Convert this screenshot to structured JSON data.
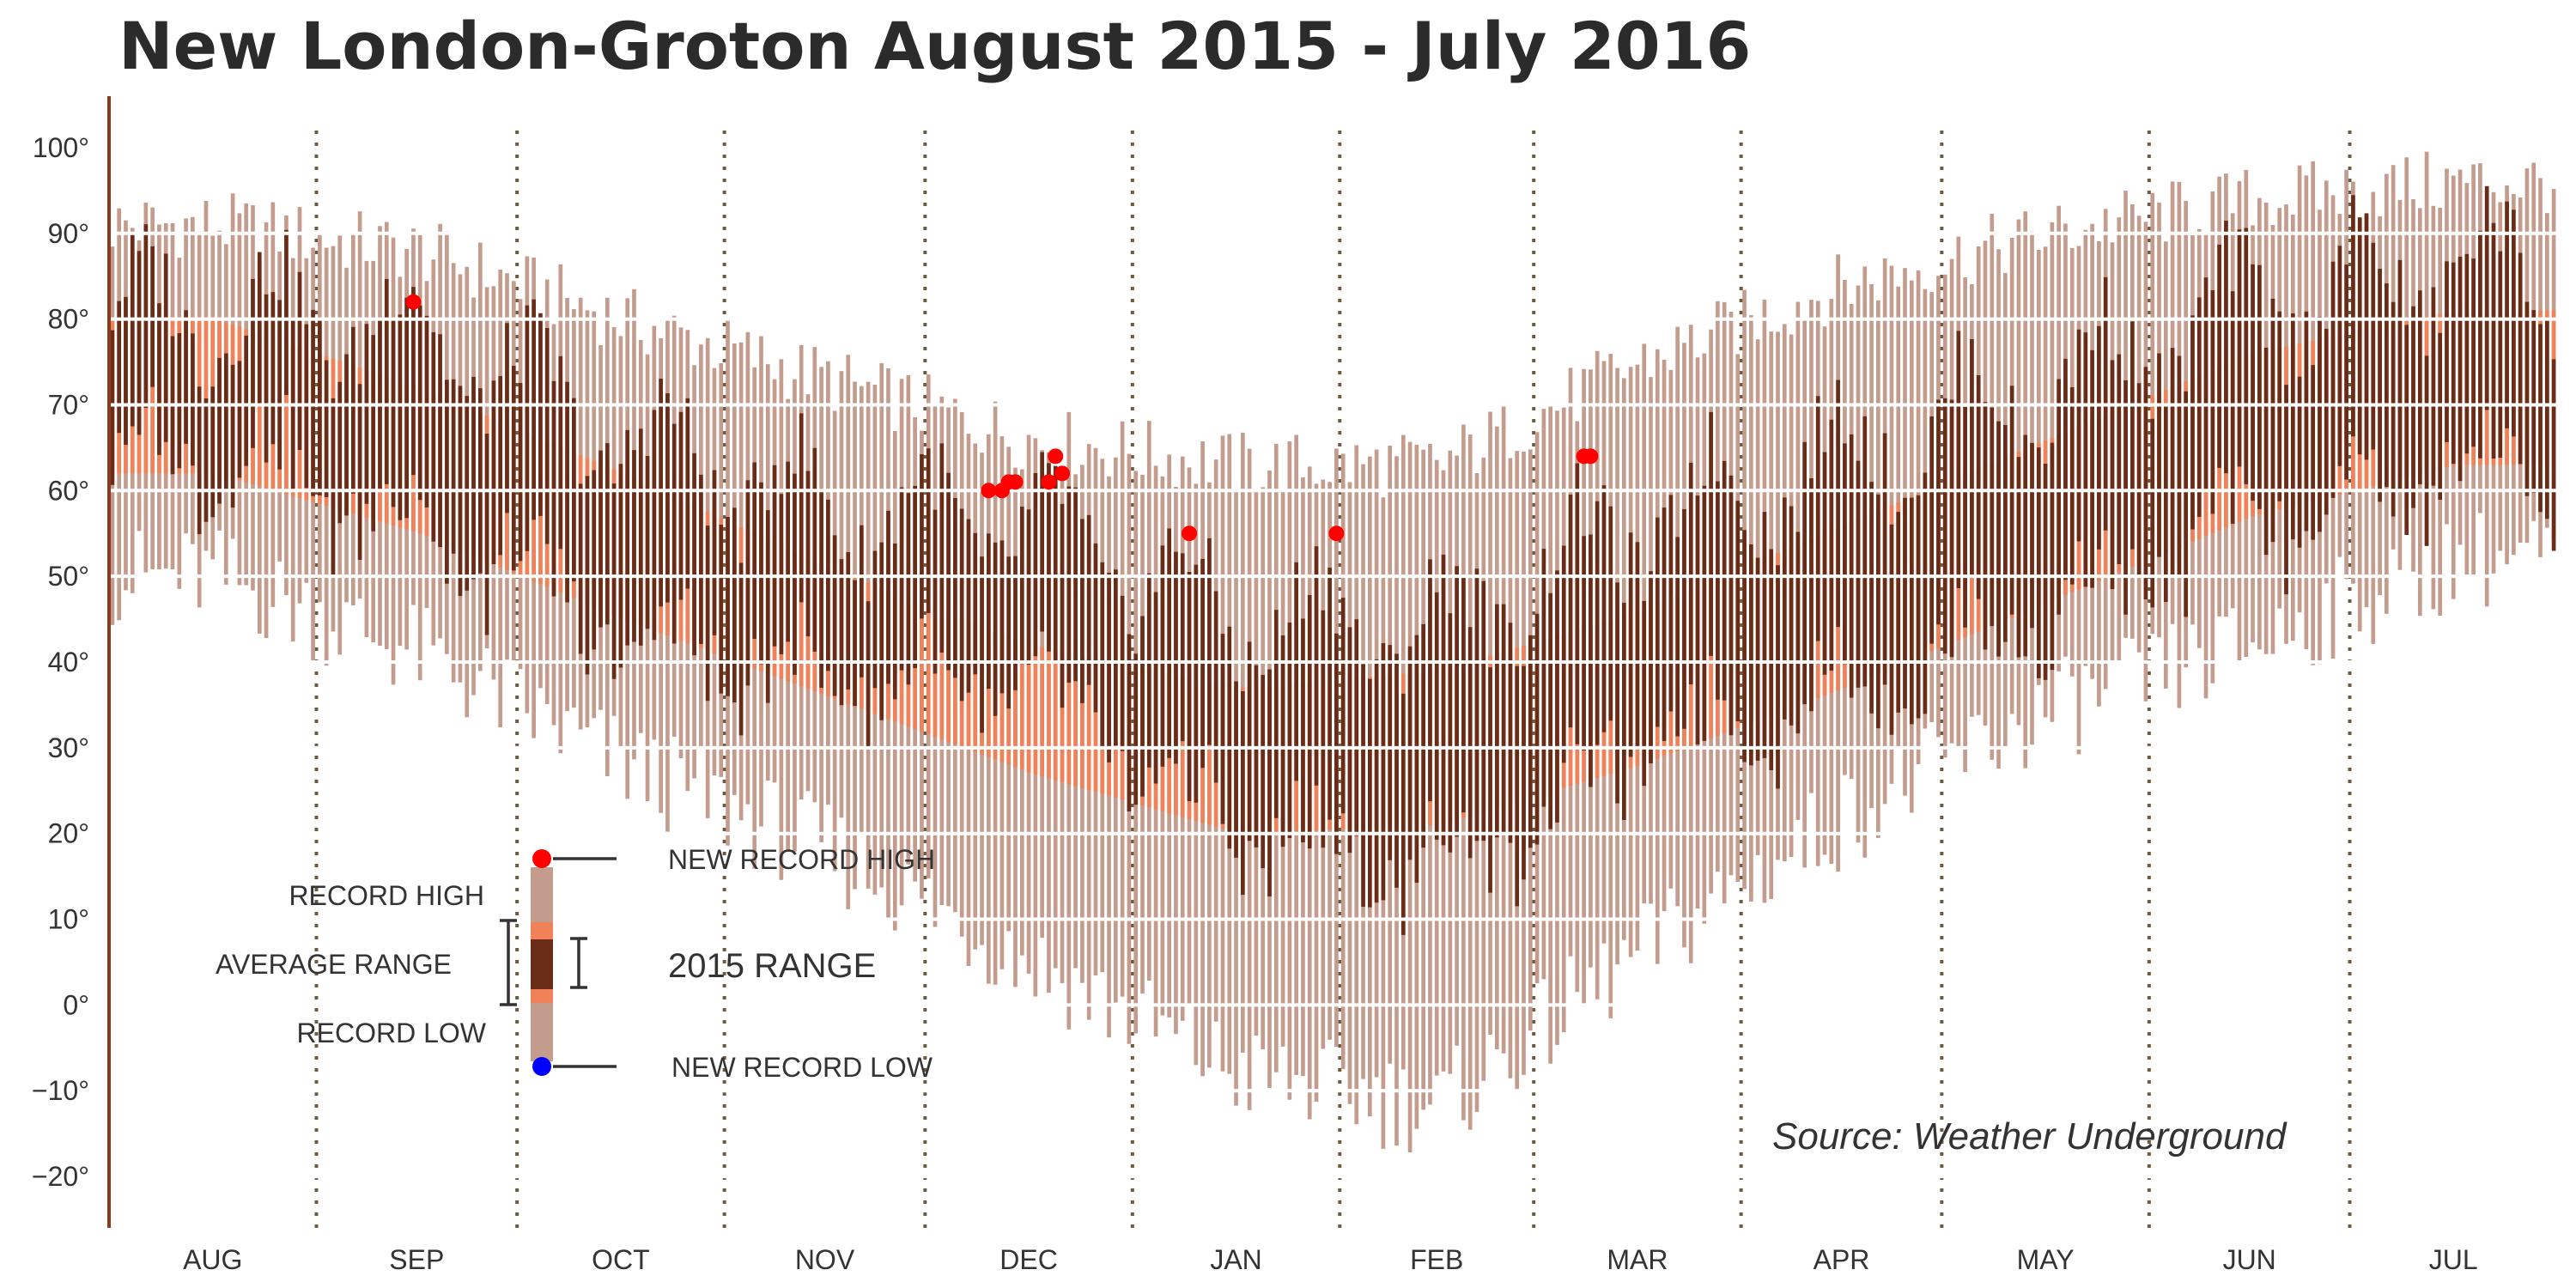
{
  "chart_data": {
    "type": "bar",
    "title": "New London-Groton August 2015 - July 2016",
    "source": "Source: Weather Underground",
    "ylim": [
      -26,
      106
    ],
    "y_ticks": [
      {
        "value": 100,
        "label": "100°"
      },
      {
        "value": 90,
        "label": "90°"
      },
      {
        "value": 80,
        "label": "80°"
      },
      {
        "value": 70,
        "label": "70°"
      },
      {
        "value": 60,
        "label": "60°"
      },
      {
        "value": 50,
        "label": "50°"
      },
      {
        "value": 40,
        "label": "40°"
      },
      {
        "value": 30,
        "label": "30°"
      },
      {
        "value": 20,
        "label": "20°"
      },
      {
        "value": 10,
        "label": "10°"
      },
      {
        "value": 0,
        "label": "0°"
      },
      {
        "value": -10,
        "label": "−10°"
      },
      {
        "value": -20,
        "label": "−20°"
      }
    ],
    "months": [
      "AUG",
      "SEP",
      "OCT",
      "NOV",
      "DEC",
      "JAN",
      "FEB",
      "MAR",
      "APR",
      "MAY",
      "JUN",
      "JUL"
    ],
    "month_days": [
      31,
      30,
      31,
      30,
      31,
      31,
      29,
      31,
      30,
      31,
      30,
      31
    ],
    "grid": "horizontal white lines every 10°; dotted vertical month separators",
    "series": [
      {
        "name": "RECORD HIGH / RECORD LOW",
        "color": "#c49c8e"
      },
      {
        "name": "AVERAGE RANGE",
        "color": "#f08158"
      },
      {
        "name": "2015 RANGE",
        "color": "#6b2c17"
      }
    ],
    "monthly_anchors": {
      "record_high": [
        91,
        88,
        80,
        73,
        66,
        63,
        63,
        75,
        84,
        90,
        94,
        96
      ],
      "record_low": [
        50,
        41,
        28,
        18,
        5,
        -8,
        -12,
        6,
        22,
        34,
        42,
        52
      ],
      "average_high": [
        80,
        72,
        62,
        51,
        42,
        37,
        39,
        46,
        56,
        66,
        76,
        81
      ],
      "average_low": [
        62,
        55,
        45,
        36,
        27,
        20,
        21,
        28,
        37,
        47,
        57,
        63
      ],
      "actual_high": [
        81,
        79,
        66,
        58,
        56,
        45,
        44,
        56,
        64,
        72,
        82,
        86
      ],
      "actual_low": [
        64,
        56,
        43,
        38,
        37,
        20,
        15,
        30,
        36,
        46,
        56,
        63
      ]
    },
    "new_record_highs": [
      {
        "day": 45,
        "value": 82
      },
      {
        "day": 131,
        "value": 60
      },
      {
        "day": 133,
        "value": 60
      },
      {
        "day": 134,
        "value": 61
      },
      {
        "day": 135,
        "value": 61
      },
      {
        "day": 140,
        "value": 61
      },
      {
        "day": 141,
        "value": 64
      },
      {
        "day": 142,
        "value": 62
      },
      {
        "day": 161,
        "value": 55
      },
      {
        "day": 183,
        "value": 55
      },
      {
        "day": 220,
        "value": 64
      },
      {
        "day": 221,
        "value": 64
      }
    ],
    "annotations": {
      "record_high": "RECORD HIGH",
      "average_range": "AVERAGE RANGE",
      "record_low": "RECORD LOW",
      "new_record_high": "NEW RECORD HIGH",
      "range_2015": "2015 RANGE",
      "new_record_low": "NEW RECORD LOW"
    },
    "colors": {
      "record": "#c49c8e",
      "average": "#f08158",
      "actual": "#6b2c17",
      "new_high": "#ff0000",
      "new_low": "#0000ff",
      "month_separator": "#6e5a3e",
      "axis": "#8b3a1e"
    }
  }
}
